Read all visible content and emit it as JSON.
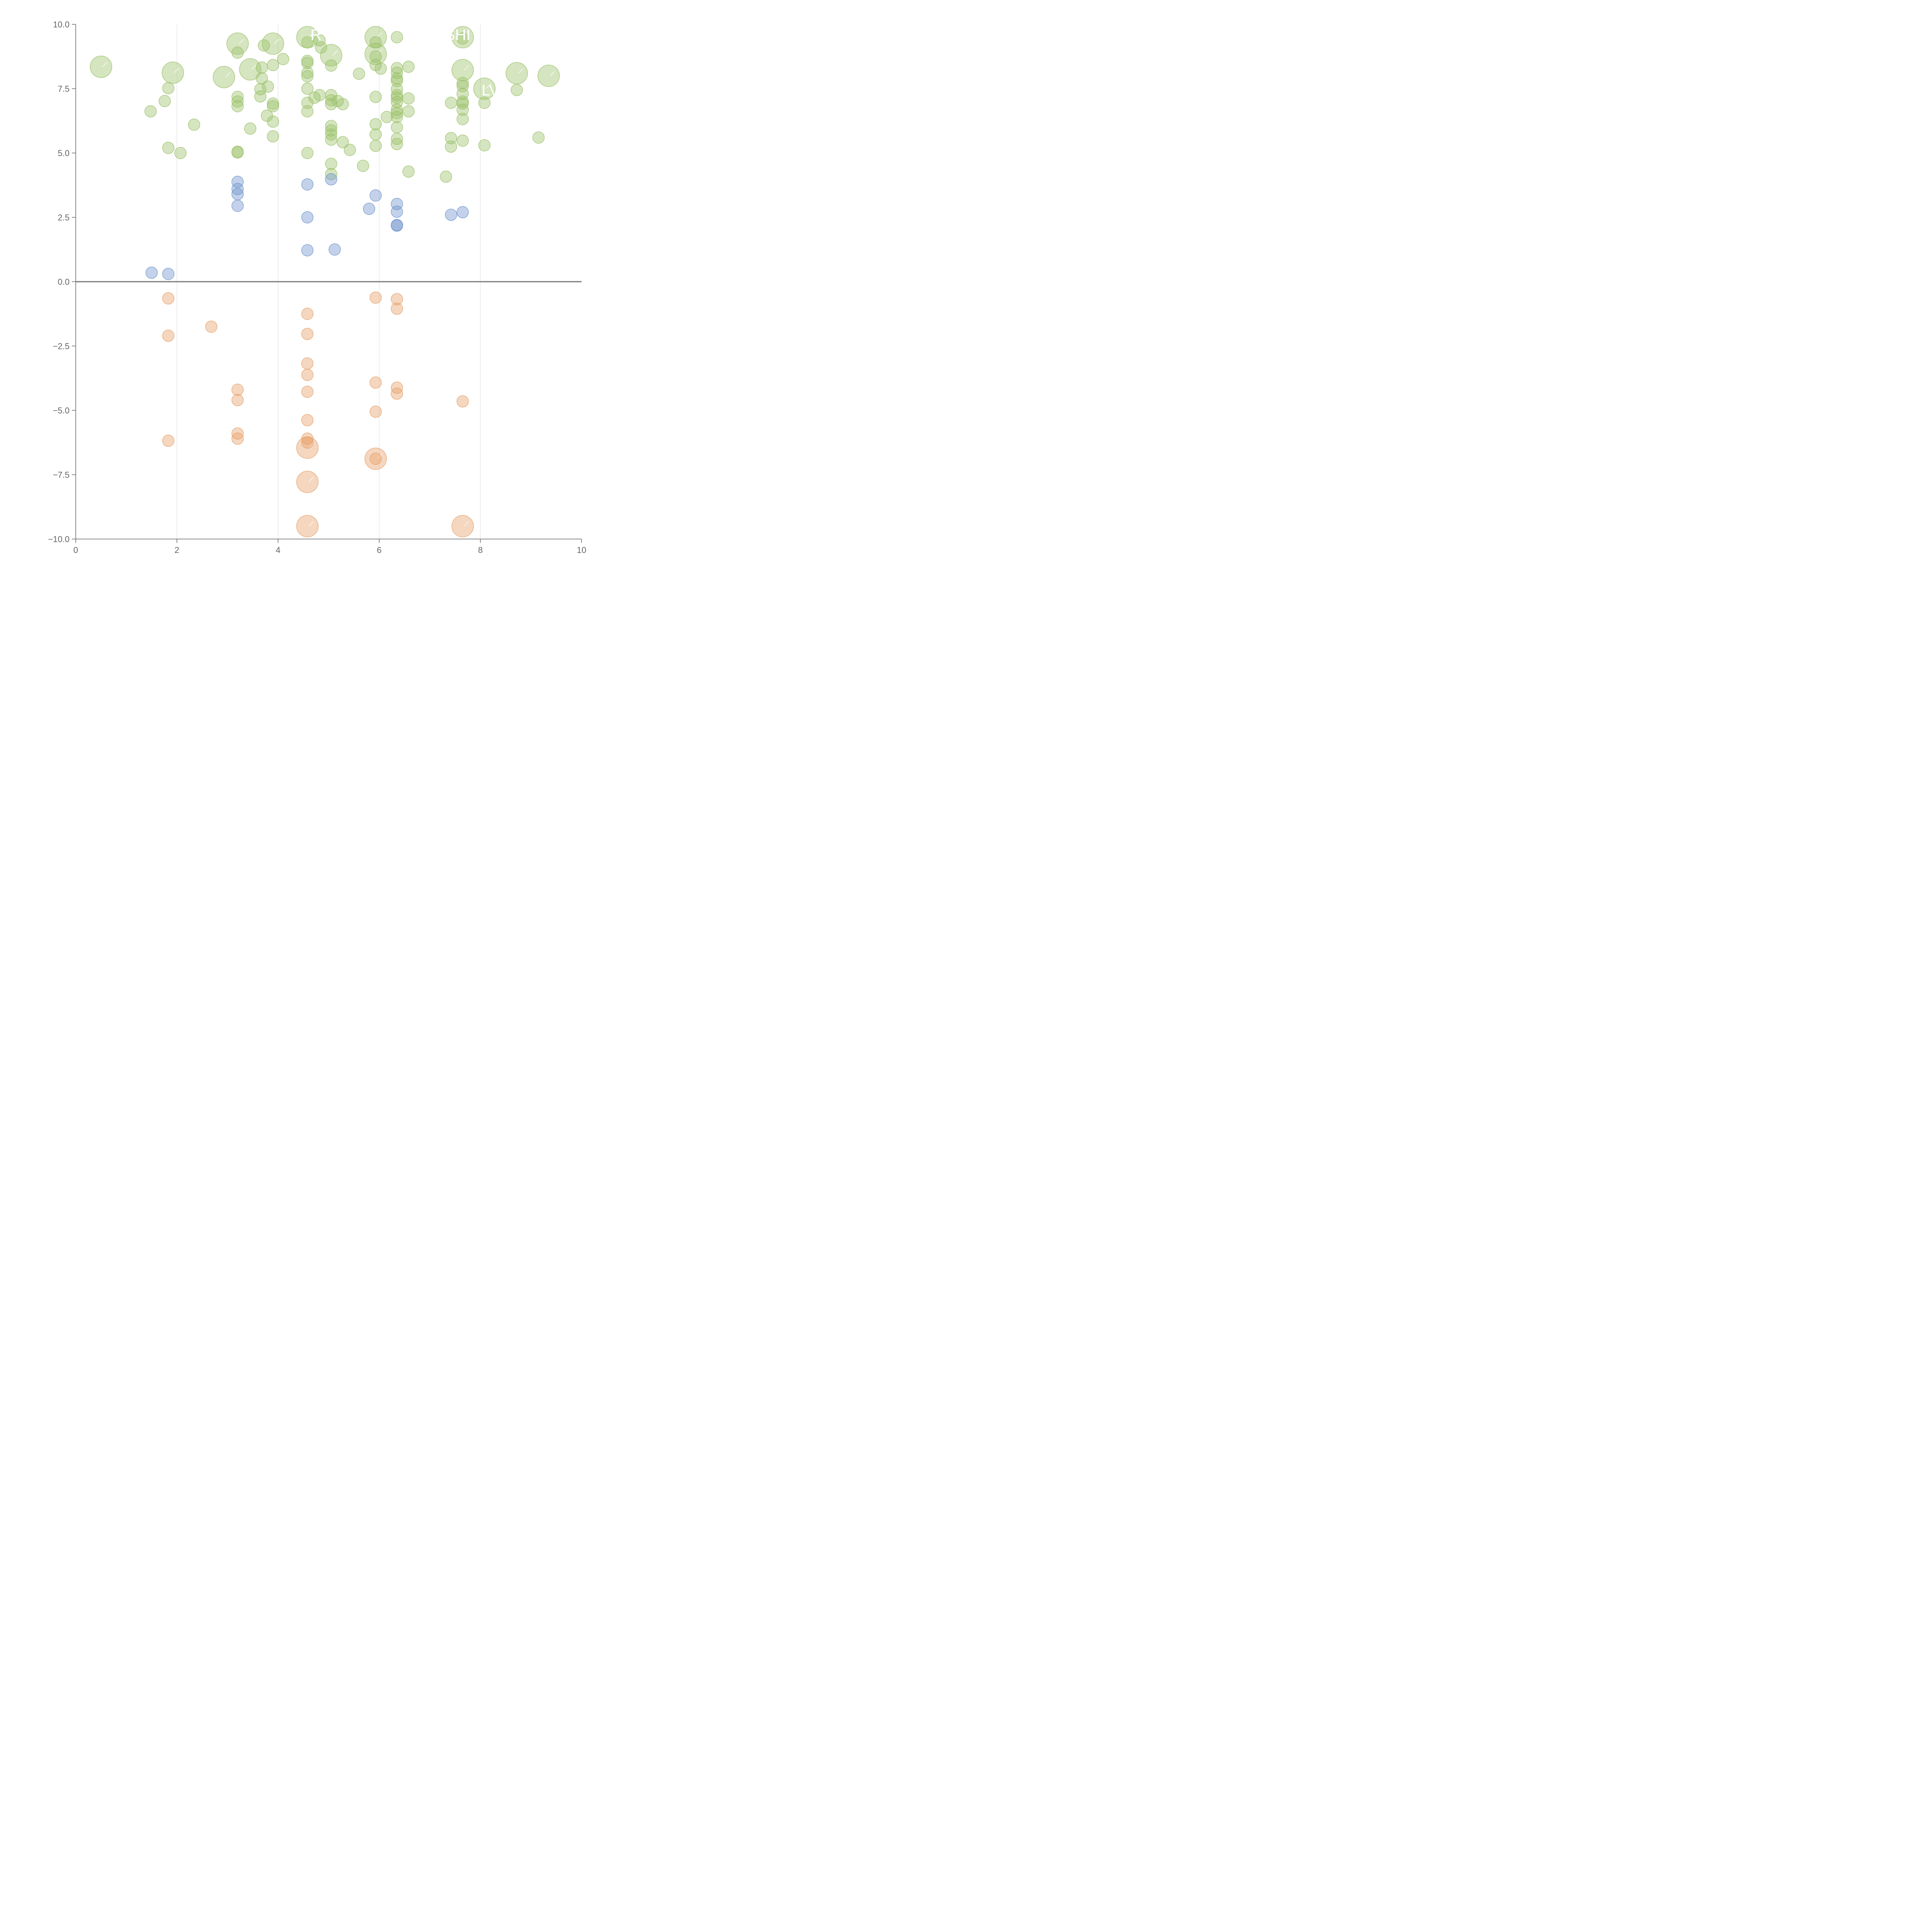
{
  "chart_data": {
    "type": "scatter",
    "title": "",
    "xlabel": "",
    "ylabel": "",
    "xlim": [
      0,
      10
    ],
    "ylim": [
      -10,
      10
    ],
    "x_ticks": [
      "0",
      "2",
      "4",
      "6",
      "8",
      "10"
    ],
    "y_ticks": [
      "10.0",
      "7.5",
      "5.0",
      "2.5",
      "0.0",
      "−2.5",
      "−5.0",
      "−7.5",
      "−10.0"
    ],
    "grid": "vertical gridlines at x = 2, 4, 6, 8",
    "zero_line": true,
    "colors": {
      "green": "#9cc06a",
      "blue": "#6f93cc",
      "orange": "#e6a06a",
      "axis": "#666666",
      "grid": "#dddddd"
    },
    "series": [
      {
        "color": "#9cc06a",
        "points": [
          [
            0.5,
            8.35,
            "L"
          ],
          [
            1.92,
            8.12,
            "L"
          ],
          [
            2.93,
            7.95,
            "L"
          ],
          [
            3.2,
            9.25,
            "L"
          ],
          [
            3.45,
            8.25,
            "L"
          ],
          [
            3.9,
            9.25,
            "L"
          ],
          [
            4.58,
            9.5,
            "L"
          ],
          [
            5.05,
            8.8,
            "L"
          ],
          [
            5.93,
            9.5,
            "L"
          ],
          [
            5.93,
            8.85,
            "L"
          ],
          [
            7.65,
            9.5,
            "L"
          ],
          [
            7.65,
            8.22,
            "L"
          ],
          [
            8.08,
            7.5,
            "L"
          ],
          [
            8.72,
            8.1,
            "L"
          ],
          [
            9.35,
            8.0,
            "L"
          ],
          [
            1.48,
            6.62
          ],
          [
            1.76,
            7.02
          ],
          [
            1.83,
            7.52
          ],
          [
            1.83,
            5.2
          ],
          [
            2.07,
            5.0
          ],
          [
            2.34,
            6.1
          ],
          [
            3.2,
            8.9
          ],
          [
            3.2,
            7.18
          ],
          [
            3.2,
            7.0
          ],
          [
            3.2,
            6.82
          ],
          [
            3.2,
            5.05
          ],
          [
            3.2,
            5.02
          ],
          [
            3.45,
            5.95
          ],
          [
            3.65,
            7.48
          ],
          [
            3.65,
            7.2
          ],
          [
            3.68,
            8.32
          ],
          [
            3.68,
            7.9
          ],
          [
            3.72,
            9.18
          ],
          [
            3.78,
            6.45
          ],
          [
            3.8,
            7.58
          ],
          [
            3.9,
            8.42
          ],
          [
            3.9,
            6.92
          ],
          [
            3.9,
            6.82
          ],
          [
            3.9,
            6.22
          ],
          [
            3.9,
            5.65
          ],
          [
            4.1,
            8.65
          ],
          [
            4.58,
            9.3
          ],
          [
            4.58,
            8.58
          ],
          [
            4.58,
            8.5
          ],
          [
            4.58,
            8.12
          ],
          [
            4.58,
            7.98
          ],
          [
            4.58,
            7.5
          ],
          [
            4.58,
            6.95
          ],
          [
            4.58,
            6.62
          ],
          [
            4.58,
            5.0
          ],
          [
            4.72,
            7.15
          ],
          [
            4.82,
            9.38
          ],
          [
            4.82,
            7.25
          ],
          [
            4.85,
            9.1
          ],
          [
            5.05,
            8.4
          ],
          [
            5.05,
            7.25
          ],
          [
            5.05,
            7.05
          ],
          [
            5.05,
            6.9
          ],
          [
            5.05,
            6.05
          ],
          [
            5.05,
            5.88
          ],
          [
            5.05,
            5.72
          ],
          [
            5.05,
            5.52
          ],
          [
            5.05,
            4.58
          ],
          [
            5.05,
            4.18
          ],
          [
            5.18,
            7.02
          ],
          [
            5.28,
            6.9
          ],
          [
            5.28,
            5.42
          ],
          [
            5.42,
            5.12
          ],
          [
            5.6,
            8.08
          ],
          [
            5.68,
            4.5
          ],
          [
            5.93,
            9.3
          ],
          [
            5.93,
            8.75
          ],
          [
            5.93,
            8.42
          ],
          [
            5.93,
            7.18
          ],
          [
            5.93,
            6.12
          ],
          [
            5.93,
            5.72
          ],
          [
            5.93,
            5.28
          ],
          [
            6.03,
            8.28
          ],
          [
            6.15,
            6.4
          ],
          [
            6.35,
            9.5
          ],
          [
            6.35,
            8.3
          ],
          [
            6.35,
            8.12
          ],
          [
            6.35,
            7.9
          ],
          [
            6.35,
            7.8
          ],
          [
            6.35,
            7.48
          ],
          [
            6.35,
            7.25
          ],
          [
            6.35,
            7.15
          ],
          [
            6.35,
            6.98
          ],
          [
            6.35,
            6.68
          ],
          [
            6.35,
            6.55
          ],
          [
            6.35,
            6.4
          ],
          [
            6.35,
            6.0
          ],
          [
            6.35,
            5.55
          ],
          [
            6.35,
            5.35
          ],
          [
            6.58,
            8.35
          ],
          [
            6.58,
            7.12
          ],
          [
            6.58,
            6.62
          ],
          [
            6.58,
            4.28
          ],
          [
            7.32,
            4.08
          ],
          [
            7.42,
            6.95
          ],
          [
            7.42,
            5.58
          ],
          [
            7.42,
            5.25
          ],
          [
            7.65,
            9.45
          ],
          [
            7.65,
            7.72
          ],
          [
            7.65,
            7.6
          ],
          [
            7.65,
            7.3
          ],
          [
            7.65,
            7.0
          ],
          [
            7.65,
            6.92
          ],
          [
            7.65,
            6.68
          ],
          [
            7.65,
            6.32
          ],
          [
            7.65,
            5.48
          ],
          [
            8.08,
            6.95
          ],
          [
            8.08,
            5.3
          ],
          [
            8.72,
            7.45
          ],
          [
            9.15,
            5.6
          ]
        ]
      },
      {
        "color": "#6f93cc",
        "points": [
          [
            1.5,
            0.35
          ],
          [
            1.83,
            0.3
          ],
          [
            3.2,
            3.88
          ],
          [
            3.2,
            3.6
          ],
          [
            3.2,
            3.4
          ],
          [
            3.2,
            2.95
          ],
          [
            4.58,
            3.78
          ],
          [
            4.58,
            2.5
          ],
          [
            4.58,
            1.22
          ],
          [
            5.05,
            3.98
          ],
          [
            5.12,
            1.25
          ],
          [
            5.8,
            2.83
          ],
          [
            5.93,
            3.35
          ],
          [
            6.35,
            3.02
          ],
          [
            6.35,
            2.72
          ],
          [
            6.35,
            2.2
          ],
          [
            6.35,
            2.18
          ],
          [
            7.42,
            2.6
          ],
          [
            7.65,
            2.7
          ]
        ]
      },
      {
        "color": "#e6a06a",
        "points": [
          [
            4.58,
            -6.45,
            "L"
          ],
          [
            4.58,
            -7.78,
            "L"
          ],
          [
            4.58,
            -9.5,
            "L"
          ],
          [
            5.93,
            -6.88,
            "L"
          ],
          [
            7.65,
            -9.5,
            "L"
          ],
          [
            1.83,
            -0.65
          ],
          [
            1.83,
            -2.1
          ],
          [
            1.83,
            -6.18
          ],
          [
            2.68,
            -1.75
          ],
          [
            3.2,
            -4.2
          ],
          [
            3.2,
            -4.6
          ],
          [
            3.2,
            -5.9
          ],
          [
            3.2,
            -6.1
          ],
          [
            4.58,
            -1.25
          ],
          [
            4.58,
            -2.03
          ],
          [
            4.58,
            -3.18
          ],
          [
            4.58,
            -3.62
          ],
          [
            4.58,
            -4.28
          ],
          [
            4.58,
            -5.38
          ],
          [
            4.58,
            -6.1
          ],
          [
            4.58,
            -6.25
          ],
          [
            5.93,
            -0.62
          ],
          [
            5.93,
            -3.92
          ],
          [
            5.93,
            -5.05
          ],
          [
            5.93,
            -6.88
          ],
          [
            6.35,
            -0.68
          ],
          [
            6.35,
            -1.05
          ],
          [
            6.35,
            -4.12
          ],
          [
            6.35,
            -4.35
          ],
          [
            7.65,
            -4.65
          ]
        ]
      }
    ],
    "bubble_labels": [
      {
        "text": "R",
        "x": 4.75,
        "y": 9.6
      },
      {
        "text": "SHI",
        "x": 7.55,
        "y": 9.6
      },
      {
        "text": "LV",
        "x": 8.2,
        "y": 7.45
      }
    ]
  }
}
